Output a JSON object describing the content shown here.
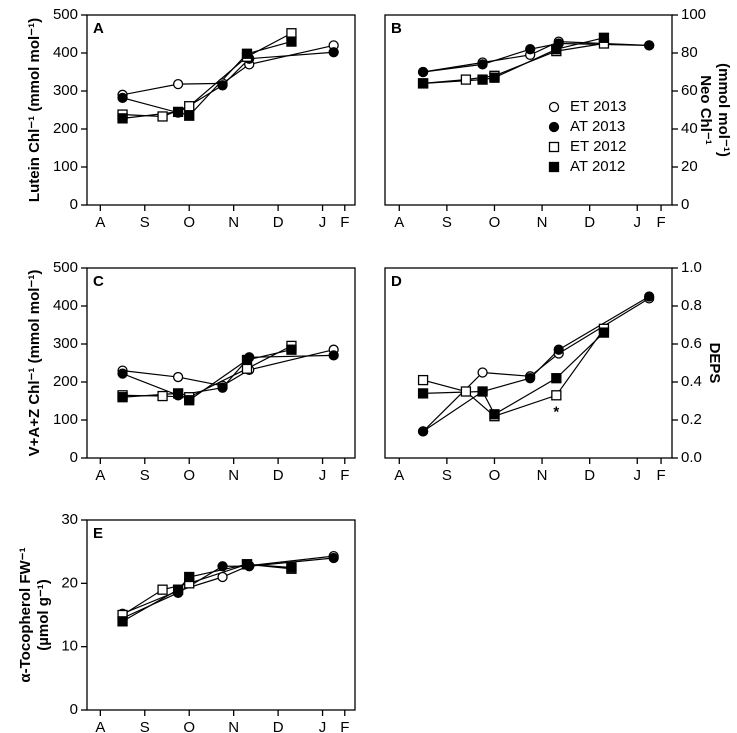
{
  "chart_data": [
    {
      "type": "line",
      "title": "A",
      "ylabel": [
        "Lutein Chl⁻¹ (mmol mol⁻¹)"
      ],
      "y_axis_side": "left",
      "xlim": [
        -0.3,
        5.73
      ],
      "xticks": [
        {
          "value": 0,
          "label": "A"
        },
        {
          "value": 1,
          "label": "S"
        },
        {
          "value": 2,
          "label": "O"
        },
        {
          "value": 3,
          "label": "N"
        },
        {
          "value": 4,
          "label": "D"
        },
        {
          "value": 5,
          "label": "J"
        },
        {
          "value": 5.5,
          "label": "F"
        }
      ],
      "ylim": [
        0,
        500
      ],
      "yticks": [
        0,
        100,
        200,
        300,
        400,
        500
      ],
      "series": [
        {
          "marker": "open-circle",
          "color": "#000000",
          "x": [
            0.5,
            1.75,
            2.75,
            3.35,
            5.25
          ],
          "values": [
            290,
            318,
            320,
            370,
            420
          ]
        },
        {
          "marker": "filled-circle",
          "color": "#000000",
          "x": [
            0.5,
            1.75,
            2.75,
            3.35,
            5.25
          ],
          "values": [
            282,
            243,
            315,
            385,
            402
          ]
        },
        {
          "marker": "open-square",
          "color": "#000000",
          "x": [
            0.5,
            1.4,
            2.0,
            3.3,
            4.3
          ],
          "values": [
            238,
            233,
            260,
            390,
            452
          ]
        },
        {
          "marker": "filled-square",
          "color": "#000000",
          "x": [
            0.5,
            1.75,
            2.0,
            3.3,
            4.3
          ],
          "values": [
            228,
            245,
            235,
            398,
            430
          ]
        }
      ]
    },
    {
      "type": "line",
      "title": "B",
      "ylabel": [
        "Neo Chl⁻¹",
        "(mmol mol⁻¹)"
      ],
      "y_axis_side": "right",
      "legend": "right",
      "xlim": [
        -0.3,
        5.73
      ],
      "xticks": [
        {
          "value": 0,
          "label": "A"
        },
        {
          "value": 1,
          "label": "S"
        },
        {
          "value": 2,
          "label": "O"
        },
        {
          "value": 3,
          "label": "N"
        },
        {
          "value": 4,
          "label": "D"
        },
        {
          "value": 5,
          "label": "J"
        },
        {
          "value": 5.5,
          "label": "F"
        }
      ],
      "ylim": [
        0,
        100
      ],
      "yticks": [
        0,
        20,
        40,
        60,
        80,
        100
      ],
      "series": [
        {
          "name": "ET 2013",
          "marker": "open-circle",
          "color": "#000000",
          "x": [
            0.5,
            1.75,
            2.75,
            3.35,
            5.25
          ],
          "values": [
            70,
            75,
            79,
            86,
            84
          ]
        },
        {
          "name": "AT 2013",
          "marker": "filled-circle",
          "color": "#000000",
          "x": [
            0.5,
            1.75,
            2.75,
            3.35,
            5.25
          ],
          "values": [
            70,
            74,
            82,
            85,
            84
          ]
        },
        {
          "name": "ET 2012",
          "marker": "open-square",
          "color": "#000000",
          "x": [
            0.5,
            1.4,
            2.0,
            3.3,
            4.3
          ],
          "values": [
            64,
            66,
            68,
            81,
            85
          ]
        },
        {
          "name": "AT 2012",
          "marker": "filled-square",
          "color": "#000000",
          "x": [
            0.5,
            1.75,
            2.0,
            3.3,
            4.3
          ],
          "values": [
            64,
            66,
            67,
            82,
            88
          ]
        }
      ]
    },
    {
      "type": "line",
      "title": "C",
      "ylabel": [
        "V+A+Z Chl⁻¹ (mmol mol⁻¹)"
      ],
      "y_axis_side": "left",
      "xlim": [
        -0.3,
        5.73
      ],
      "xticks": [
        {
          "value": 0,
          "label": "A"
        },
        {
          "value": 1,
          "label": "S"
        },
        {
          "value": 2,
          "label": "O"
        },
        {
          "value": 3,
          "label": "N"
        },
        {
          "value": 4,
          "label": "D"
        },
        {
          "value": 5,
          "label": "J"
        },
        {
          "value": 5.5,
          "label": "F"
        }
      ],
      "ylim": [
        0,
        500
      ],
      "yticks": [
        0,
        100,
        200,
        300,
        400,
        500
      ],
      "series": [
        {
          "marker": "open-circle",
          "color": "#000000",
          "x": [
            0.5,
            1.75,
            2.75,
            3.35,
            5.25
          ],
          "values": [
            230,
            213,
            190,
            232,
            285
          ]
        },
        {
          "marker": "filled-circle",
          "color": "#000000",
          "x": [
            0.5,
            1.75,
            2.75,
            3.35,
            5.25
          ],
          "values": [
            222,
            165,
            185,
            265,
            270
          ]
        },
        {
          "marker": "open-square",
          "color": "#000000",
          "x": [
            0.5,
            1.4,
            2.0,
            3.3,
            4.3
          ],
          "values": [
            165,
            163,
            160,
            235,
            295
          ]
        },
        {
          "marker": "filled-square",
          "color": "#000000",
          "x": [
            0.5,
            1.75,
            2.0,
            3.3,
            4.3
          ],
          "values": [
            160,
            170,
            152,
            258,
            285
          ]
        }
      ]
    },
    {
      "type": "line",
      "title": "D",
      "ylabel": [
        "DEPS"
      ],
      "y_axis_side": "right",
      "xlim": [
        -0.3,
        5.73
      ],
      "xticks": [
        {
          "value": 0,
          "label": "A"
        },
        {
          "value": 1,
          "label": "S"
        },
        {
          "value": 2,
          "label": "O"
        },
        {
          "value": 3,
          "label": "N"
        },
        {
          "value": 4,
          "label": "D"
        },
        {
          "value": 5,
          "label": "J"
        },
        {
          "value": 5.5,
          "label": "F"
        }
      ],
      "ylim": [
        0,
        1.0
      ],
      "yticks": [
        {
          "value": 0,
          "label": "0.0"
        },
        0.2,
        0.4,
        0.6,
        0.8,
        {
          "value": 1,
          "label": "1.0"
        }
      ],
      "annotations": [
        {
          "text": "*",
          "x": 3.3,
          "y": 0.24
        }
      ],
      "series": [
        {
          "marker": "open-circle",
          "color": "#000000",
          "x": [
            0.5,
            1.75,
            2.75,
            3.35,
            5.25
          ],
          "values": [
            0.14,
            0.45,
            0.43,
            0.55,
            0.84
          ]
        },
        {
          "marker": "filled-circle",
          "color": "#000000",
          "x": [
            0.5,
            1.75,
            2.75,
            3.35,
            5.25
          ],
          "values": [
            0.14,
            0.35,
            0.42,
            0.57,
            0.85
          ]
        },
        {
          "marker": "open-square",
          "color": "#000000",
          "x": [
            0.5,
            1.4,
            2.0,
            3.3,
            4.3
          ],
          "values": [
            0.41,
            0.35,
            0.22,
            0.33,
            0.68
          ]
        },
        {
          "marker": "filled-square",
          "color": "#000000",
          "x": [
            0.5,
            1.75,
            2.0,
            3.3,
            4.3
          ],
          "values": [
            0.34,
            0.35,
            0.23,
            0.42,
            0.66
          ]
        }
      ]
    },
    {
      "type": "line",
      "title": "E",
      "ylabel": [
        "α-Tocopherol FW⁻¹",
        "(µmol g⁻¹)"
      ],
      "y_axis_side": "left",
      "xlim": [
        -0.3,
        5.73
      ],
      "xticks": [
        {
          "value": 0,
          "label": "A"
        },
        {
          "value": 1,
          "label": "S"
        },
        {
          "value": 2,
          "label": "O"
        },
        {
          "value": 3,
          "label": "N"
        },
        {
          "value": 4,
          "label": "D"
        },
        {
          "value": 5,
          "label": "J"
        },
        {
          "value": 5.5,
          "label": "F"
        }
      ],
      "ylim": [
        0,
        30
      ],
      "yticks": [
        0,
        10,
        20,
        30
      ],
      "series": [
        {
          "marker": "open-circle",
          "color": "#000000",
          "x": [
            0.5,
            1.75,
            2.75,
            3.35,
            5.25
          ],
          "values": [
            15.2,
            18.8,
            21,
            22.8,
            24.3
          ]
        },
        {
          "marker": "filled-circle",
          "color": "#000000",
          "x": [
            0.5,
            1.75,
            2.75,
            3.35,
            5.25
          ],
          "values": [
            14.5,
            18.5,
            22.7,
            22.7,
            24
          ]
        },
        {
          "marker": "open-square",
          "color": "#000000",
          "x": [
            0.5,
            1.4,
            2.0,
            3.3,
            4.3
          ],
          "values": [
            15,
            19,
            20,
            23,
            22.3
          ]
        },
        {
          "marker": "filled-square",
          "color": "#000000",
          "x": [
            0.5,
            1.75,
            2.0,
            3.3,
            4.3
          ],
          "values": [
            14,
            19,
            21,
            23,
            22.5
          ]
        }
      ]
    }
  ]
}
